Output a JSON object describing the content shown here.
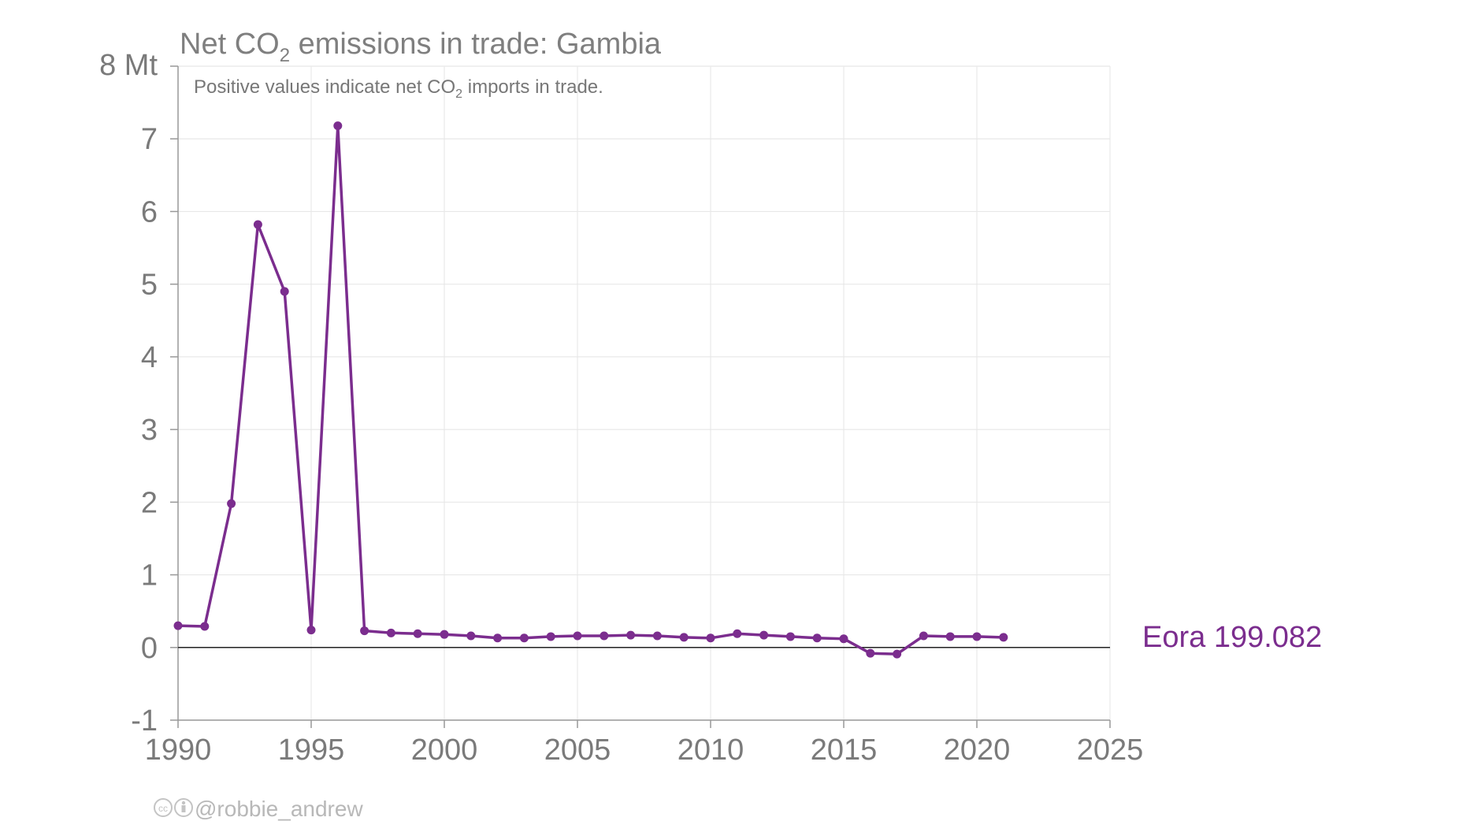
{
  "chart_data": {
    "type": "line",
    "title": {
      "prefix": "Net CO",
      "sub": "2",
      "suffix": " emissions in trade: Gambia"
    },
    "subtitle": {
      "prefix": "Positive values indicate net CO",
      "sub": "2",
      "suffix": " imports in trade."
    },
    "y_unit_label": "8 Mt",
    "xlim": [
      1990,
      2025
    ],
    "ylim": [
      -1,
      8
    ],
    "x_ticks": [
      1990,
      1995,
      2000,
      2005,
      2010,
      2015,
      2020,
      2025
    ],
    "y_ticks": [
      -1,
      0,
      1,
      2,
      3,
      4,
      5,
      6,
      7
    ],
    "grid": true,
    "zero_line": true,
    "series": [
      {
        "name": "Eora 199.082",
        "color": "#7b2d8e",
        "x": [
          1990,
          1991,
          1992,
          1993,
          1994,
          1995,
          1996,
          1997,
          1998,
          1999,
          2000,
          2001,
          2002,
          2003,
          2004,
          2005,
          2006,
          2007,
          2008,
          2009,
          2010,
          2011,
          2012,
          2013,
          2014,
          2015,
          2016,
          2017,
          2018,
          2019,
          2020,
          2021
        ],
        "y": [
          0.3,
          0.29,
          1.98,
          5.82,
          4.9,
          0.24,
          7.18,
          0.23,
          0.2,
          0.19,
          0.18,
          0.16,
          0.13,
          0.13,
          0.15,
          0.16,
          0.16,
          0.17,
          0.16,
          0.14,
          0.13,
          0.19,
          0.17,
          0.15,
          0.13,
          0.12,
          -0.08,
          -0.09,
          0.16,
          0.15,
          0.15,
          0.14
        ]
      }
    ],
    "credit": "@robbie_andrew"
  },
  "colors": {
    "series": "#7b2d8e",
    "text": "#7a7a7a",
    "grid": "#e8e8e8",
    "axis": "#999999",
    "zero": "#222222"
  }
}
